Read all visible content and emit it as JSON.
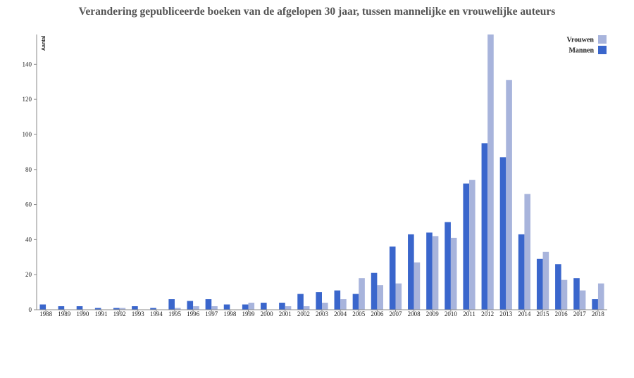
{
  "chart_data": {
    "type": "bar",
    "title": "Verandering gepubliceerde boeken van de afgelopen 30 jaar, tussen mannelijke en vrouwelijke auteurs",
    "ylabel": "Aantal",
    "xlabel": "",
    "ylim": [
      0,
      157
    ],
    "yticks": [
      0,
      20,
      40,
      60,
      80,
      100,
      120,
      140
    ],
    "grid": false,
    "legend_position": "top-right",
    "categories": [
      "1988",
      "1989",
      "1990",
      "1991",
      "1992",
      "1993",
      "1994",
      "1995",
      "1996",
      "1997",
      "1998",
      "1999",
      "2000",
      "2001",
      "2002",
      "2003",
      "2004",
      "2005",
      "2006",
      "2007",
      "2008",
      "2009",
      "2010",
      "2011",
      "2012",
      "2013",
      "2014",
      "2015",
      "2016",
      "2017",
      "2018"
    ],
    "series": [
      {
        "name": "Mannen",
        "color": "#3a66cc",
        "values": [
          3,
          2,
          2,
          1,
          1,
          2,
          1,
          6,
          5,
          6,
          3,
          3,
          4,
          4,
          9,
          10,
          11,
          9,
          21,
          36,
          43,
          44,
          50,
          72,
          95,
          87,
          43,
          29,
          26,
          18,
          6
        ]
      },
      {
        "name": "Vrouwen",
        "color": "#a8b4dc",
        "values": [
          0,
          0,
          0,
          0,
          1,
          0,
          0,
          1,
          2,
          2,
          0,
          4,
          0,
          2,
          2,
          4,
          6,
          18,
          14,
          15,
          27,
          42,
          41,
          74,
          157,
          131,
          66,
          33,
          17,
          11,
          15
        ]
      }
    ]
  }
}
